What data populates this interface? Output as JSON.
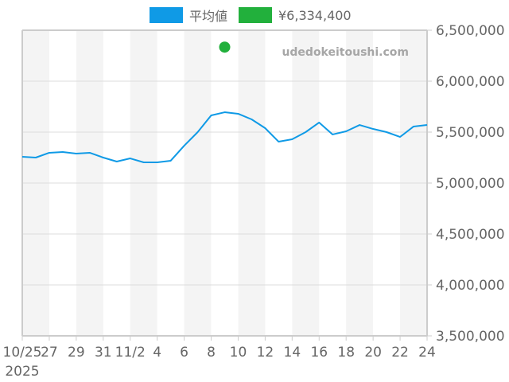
{
  "legend": {
    "items": [
      {
        "label": "平均値",
        "color": "#0f9ae6"
      },
      {
        "label": "¥6,334,400",
        "color": "#22b03c"
      }
    ]
  },
  "watermark": "udedokeitoushi.com",
  "colors": {
    "line": "#0f9ae6",
    "dot": "#22b03c",
    "stripe": "#f4f4f4",
    "grid": "#dddddd",
    "axis": "#cccccc",
    "text": "#666666"
  },
  "chart_data": {
    "type": "line",
    "title": "",
    "xlabel": "",
    "ylabel": "",
    "ylim": [
      3500000,
      6500000
    ],
    "yticks": [
      {
        "value": 6500000,
        "label": "6,500,000"
      },
      {
        "value": 6000000,
        "label": "6,000,000"
      },
      {
        "value": 5500000,
        "label": "5,500,000"
      },
      {
        "value": 5000000,
        "label": "5,000,000"
      },
      {
        "value": 4500000,
        "label": "4,500,000"
      },
      {
        "value": 4000000,
        "label": "4,000,000"
      },
      {
        "value": 3500000,
        "label": "3,500,000"
      }
    ],
    "xticks": [
      {
        "index": 0,
        "label": "10/25",
        "sublabel": "2025"
      },
      {
        "index": 2,
        "label": "27"
      },
      {
        "index": 4,
        "label": "29"
      },
      {
        "index": 6,
        "label": "31"
      },
      {
        "index": 8,
        "label": "11/2"
      },
      {
        "index": 10,
        "label": "4"
      },
      {
        "index": 12,
        "label": "6"
      },
      {
        "index": 14,
        "label": "8"
      },
      {
        "index": 16,
        "label": "10"
      },
      {
        "index": 18,
        "label": "12"
      },
      {
        "index": 20,
        "label": "14"
      },
      {
        "index": 22,
        "label": "16"
      },
      {
        "index": 24,
        "label": "18"
      },
      {
        "index": 26,
        "label": "20"
      },
      {
        "index": 28,
        "label": "22"
      },
      {
        "index": 30,
        "label": "24"
      }
    ],
    "x": [
      "2025-10-25",
      "2025-10-26",
      "2025-10-27",
      "2025-10-28",
      "2025-10-29",
      "2025-10-30",
      "2025-10-31",
      "2025-11-01",
      "2025-11-02",
      "2025-11-03",
      "2025-11-04",
      "2025-11-05",
      "2025-11-06",
      "2025-11-07",
      "2025-11-08",
      "2025-11-09",
      "2025-11-10",
      "2025-11-11",
      "2025-11-12",
      "2025-11-13",
      "2025-11-14",
      "2025-11-15",
      "2025-11-16",
      "2025-11-17",
      "2025-11-18",
      "2025-11-19",
      "2025-11-20",
      "2025-11-21",
      "2025-11-22",
      "2025-11-23",
      "2025-11-24"
    ],
    "series": [
      {
        "name": "平均値",
        "type": "line",
        "values": [
          5258000,
          5250000,
          5297000,
          5305000,
          5289000,
          5297000,
          5250000,
          5211000,
          5242000,
          5203000,
          5203000,
          5219000,
          5367000,
          5500000,
          5664000,
          5695000,
          5680000,
          5625000,
          5539000,
          5406000,
          5430000,
          5500000,
          5594000,
          5477000,
          5508000,
          5570000,
          5531000,
          5500000,
          5453000,
          5555000,
          5570000
        ]
      },
      {
        "name": "¥6,334,400",
        "type": "scatter",
        "points": [
          {
            "x": "2025-11-09",
            "index": 15,
            "value": 6334400
          }
        ]
      }
    ],
    "grid": true,
    "legend_position": "top"
  }
}
